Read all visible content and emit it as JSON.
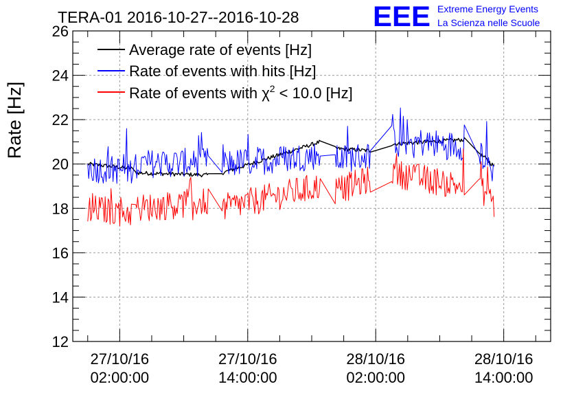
{
  "chart_data": {
    "type": "line",
    "title": "TERA-01 2016-10-27--2016-10-28",
    "ylabel": "Rate [Hz]",
    "xlabel": "",
    "ylim": [
      12,
      26
    ],
    "yticks": [
      12,
      14,
      16,
      18,
      20,
      22,
      24,
      26
    ],
    "y_tick_labels": [
      "12",
      "14",
      "16",
      "18",
      "20",
      "22",
      "24",
      "26"
    ],
    "xlim_hours": [
      -2.4,
      42.4
    ],
    "x_tick_hours": [
      2,
      14,
      26,
      38
    ],
    "x_tick_labels": [
      [
        "27/10/16",
        "02:00:00"
      ],
      [
        "27/10/16",
        "14:00:00"
      ],
      [
        "28/10/16",
        "02:00:00"
      ],
      [
        "28/10/16",
        "14:00:00"
      ]
    ],
    "grid": true,
    "legend_position": "top-left",
    "segments_hours": [
      [
        -1,
        3.1
      ],
      [
        3.5,
        10.3
      ],
      [
        11.6,
        20.8
      ],
      [
        22.2,
        25.5
      ],
      [
        27.5,
        34.3
      ],
      [
        35.7,
        37.1
      ]
    ],
    "series": [
      {
        "name": "Average rate of events [Hz]",
        "color": "#000000",
        "x": [
          -1,
          3.1,
          3.5,
          10.3,
          11.6,
          20.8,
          22.2,
          25.5,
          27.5,
          34.3,
          35.7,
          37.1
        ],
        "values": [
          20.0,
          19.8,
          19.6,
          19.5,
          19.6,
          21.0,
          20.7,
          20.6,
          20.9,
          21.1,
          20.5,
          19.9
        ]
      },
      {
        "name": "Rate of events with hits [Hz]",
        "color": "#0000ff",
        "x": [
          -1,
          3.1,
          3.5,
          10.3,
          11.6,
          20.8,
          22.2,
          25.5,
          27.5,
          34.3,
          35.7,
          37.1
        ],
        "values": [
          19.8,
          19.7,
          20.0,
          20.1,
          20.0,
          20.4,
          20.2,
          20.4,
          21.1,
          20.8,
          20.6,
          19.6
        ]
      },
      {
        "name": "Rate of events with χ² < 10.0 [Hz]",
        "color": "#ff0000",
        "x": [
          -1,
          3.1,
          3.5,
          10.3,
          11.6,
          20.8,
          22.2,
          25.5,
          27.5,
          34.3,
          35.7,
          37.1
        ],
        "values": [
          18.0,
          17.8,
          18.0,
          18.3,
          18.0,
          19.0,
          18.8,
          19.3,
          19.6,
          19.0,
          19.0,
          18.2
        ]
      }
    ],
    "legend": {
      "entries": [
        {
          "text": "Average rate of events [Hz]",
          "color": "#000000"
        },
        {
          "text": "Rate of events with hits [Hz]",
          "color": "#0000ff"
        },
        {
          "pre": "Rate of events with χ",
          "sup": "2",
          "post": " < 10.0 [Hz]",
          "color": "#ff0000"
        }
      ]
    }
  },
  "logo": {
    "text": "EEE",
    "line1": "Extreme Energy Events",
    "line2": "La Scienza nelle Scuole",
    "color": "#0000ff"
  }
}
